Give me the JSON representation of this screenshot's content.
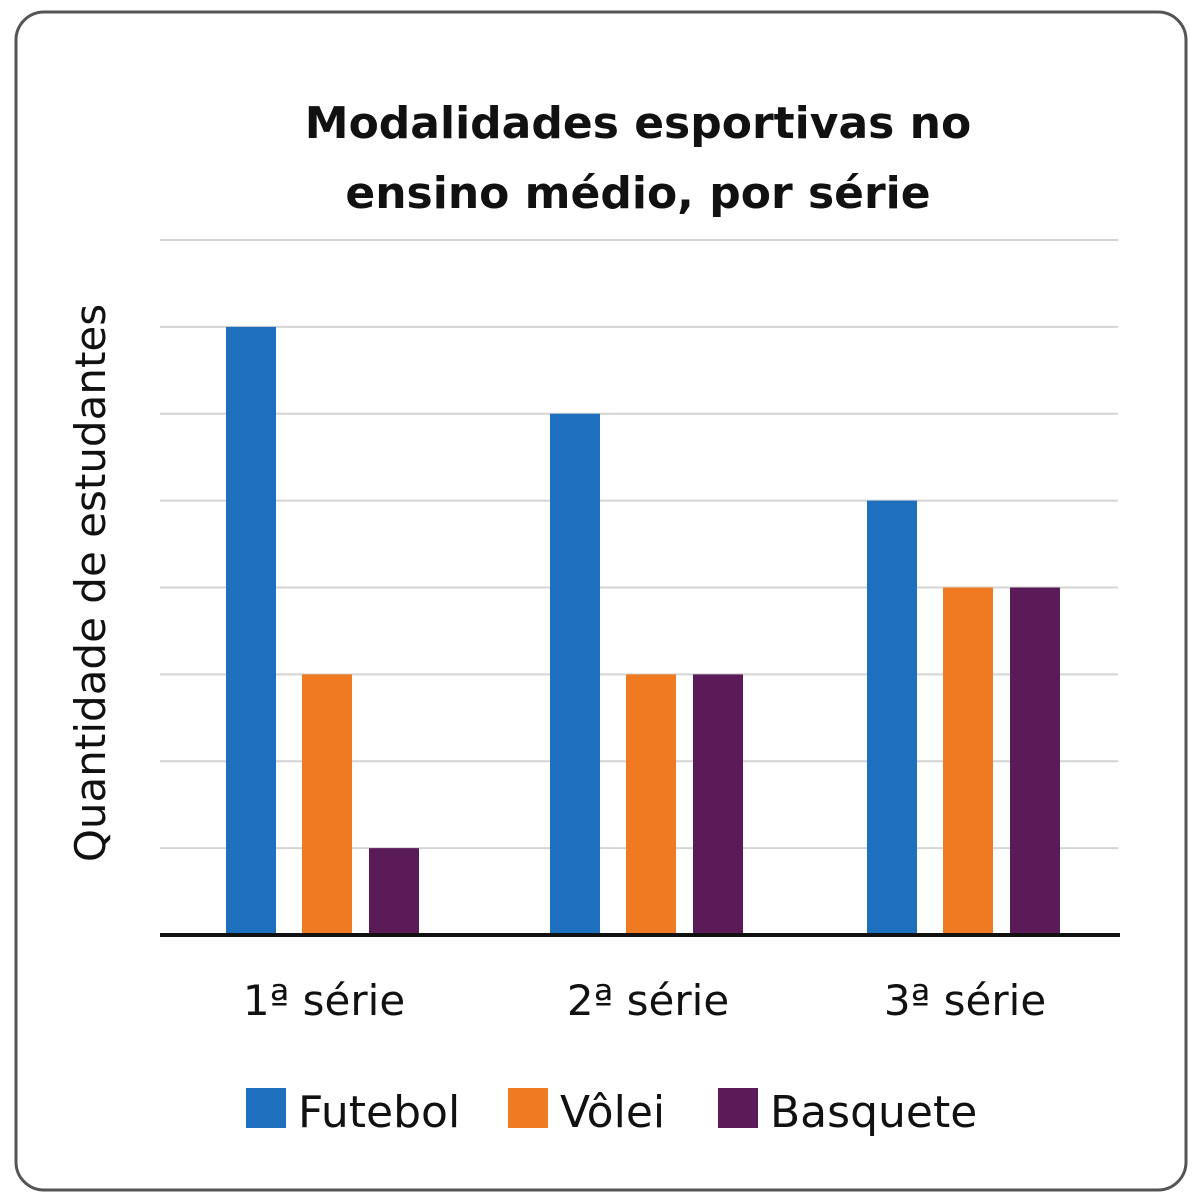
{
  "chart_data": {
    "type": "bar",
    "title": [
      "Modalidades esportivas no",
      "ensino médio, por série"
    ],
    "xlabel": "",
    "ylabel": "Quantidade de estudantes",
    "categories": [
      "1ª série",
      "2ª série",
      "3ª série"
    ],
    "series": [
      {
        "name": "Futebol",
        "color": "#1f6fbf",
        "values": [
          7,
          6,
          5
        ]
      },
      {
        "name": "Vôlei",
        "color": "#ef7a21",
        "values": [
          3,
          3,
          4
        ]
      },
      {
        "name": "Basquete",
        "color": "#5b1a58",
        "values": [
          1,
          3,
          4
        ]
      }
    ],
    "ylim": [
      0,
      8
    ],
    "grid": true,
    "y_ticks_labeled": false,
    "legend_position": "bottom"
  }
}
